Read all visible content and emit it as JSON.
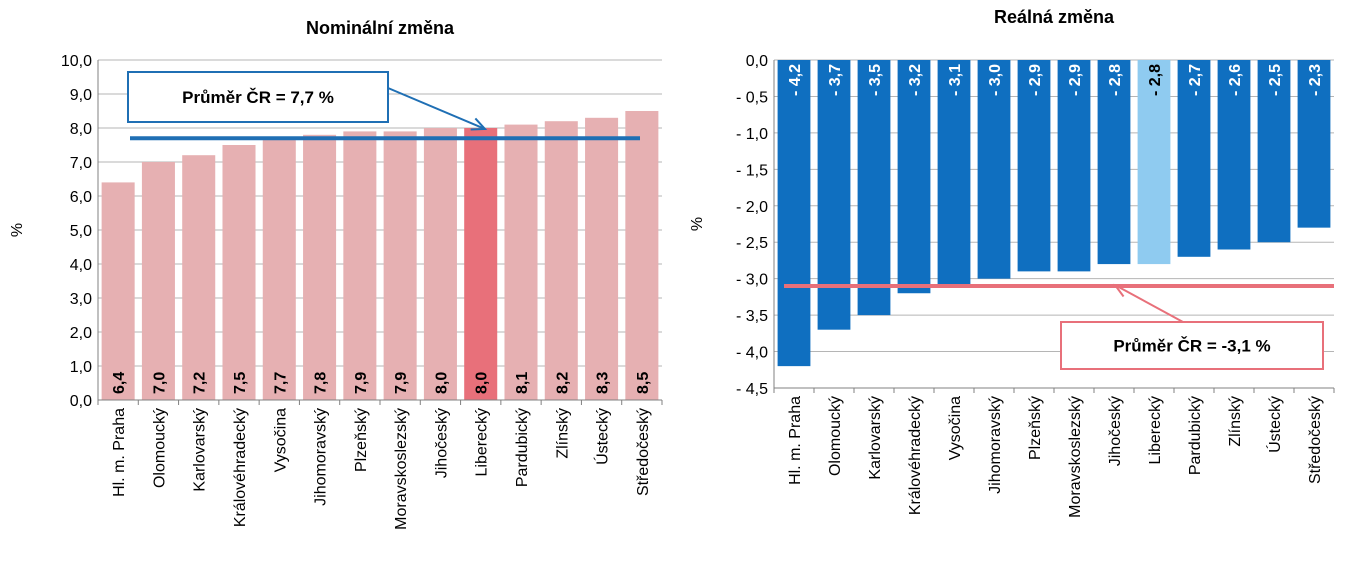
{
  "chart_data": [
    {
      "type": "bar",
      "title": "Nominální změna",
      "ylabel": "%",
      "ylim": [
        0,
        10
      ],
      "ytick_labels": [
        "0,0",
        "1,0",
        "2,0",
        "3,0",
        "4,0",
        "5,0",
        "6,0",
        "7,0",
        "8,0",
        "9,0",
        "10,0"
      ],
      "categories": [
        "Hl. m. Praha",
        "Olomoucký",
        "Karlovarský",
        "Královéhradecký",
        "Vysočina",
        "Jihomoravský",
        "Plzeňský",
        "Moravskoslezský",
        "Jihočeský",
        "Liberecký",
        "Pardubický",
        "Zlínský",
        "Ústecký",
        "Středočeský"
      ],
      "values": [
        6.4,
        7.0,
        7.2,
        7.5,
        7.7,
        7.8,
        7.9,
        7.9,
        8.0,
        8.0,
        8.1,
        8.2,
        8.3,
        8.5
      ],
      "value_labels": [
        "6,4",
        "7,0",
        "7,2",
        "7,5",
        "7,7",
        "7,8",
        "7,9",
        "7,9",
        "8,0",
        "8,0",
        "8,1",
        "8,2",
        "8,3",
        "8,5"
      ],
      "highlight_category": "Liberecký",
      "average": 7.7,
      "average_label": "Průměr ČR = 7,7 %",
      "colors": {
        "bar": "#e6b0b2",
        "highlight": "#e8707a",
        "average_line": "#1f6fb4",
        "label_box": "#1f6fb4"
      },
      "grid": true
    },
    {
      "type": "bar",
      "title": "Reálná změna",
      "ylabel": "%",
      "ylim": [
        -4.5,
        0
      ],
      "ytick_labels": [
        "0,0",
        "- 0,5",
        "- 1,0",
        "- 1,5",
        "- 2,0",
        "- 2,5",
        "- 3,0",
        "- 3,5",
        "- 4,0",
        "- 4,5"
      ],
      "categories": [
        "Hl. m. Praha",
        "Olomoucký",
        "Karlovarský",
        "Královéhradecký",
        "Vysočina",
        "Jihomoravský",
        "Plzeňský",
        "Moravskoslezský",
        "Jihočeský",
        "Liberecký",
        "Pardubický",
        "Zlínský",
        "Ústecký",
        "Středočeský"
      ],
      "values": [
        -4.2,
        -3.7,
        -3.5,
        -3.2,
        -3.1,
        -3.0,
        -2.9,
        -2.9,
        -2.8,
        -2.8,
        -2.7,
        -2.6,
        -2.5,
        -2.3
      ],
      "value_labels": [
        "- 4,2",
        "- 3,7",
        "- 3,5",
        "- 3,2",
        "- 3,1",
        "- 3,0",
        "- 2,9",
        "- 2,9",
        "- 2,8",
        "- 2,8",
        "- 2,7",
        "- 2,6",
        "- 2,5",
        "- 2,3"
      ],
      "highlight_category": "Liberecký",
      "average": -3.1,
      "average_label": "Průměr ČR = -3,1 %",
      "colors": {
        "bar": "#0f6fc0",
        "highlight": "#8fcbf0",
        "average_line": "#e8707a",
        "label_box": "#e8707a"
      },
      "grid": true
    }
  ]
}
